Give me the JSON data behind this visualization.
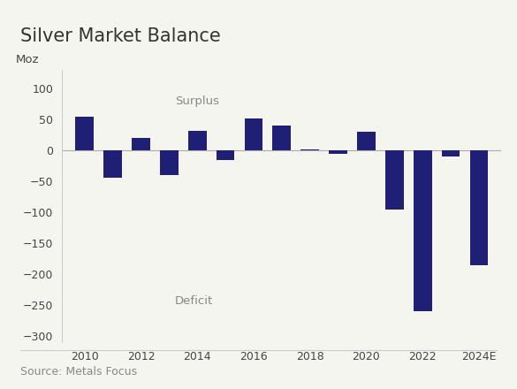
{
  "title": "Silver Market Balance",
  "ylabel": "Moz",
  "source": "Source: Metals Focus",
  "bar_color": "#1f2075",
  "background_color": "#f5f5f0",
  "years": [
    2010,
    2011,
    2012,
    2013,
    2014,
    2015,
    2016,
    2017,
    2018,
    2019,
    2020,
    2021,
    2022,
    2023,
    2024
  ],
  "values": [
    55,
    -44,
    20,
    -40,
    32,
    -15,
    52,
    40,
    2,
    -5,
    30,
    -95,
    -260,
    -10,
    -185
  ],
  "xtick_labels": [
    "2010",
    "2012",
    "2014",
    "2016",
    "2018",
    "2020",
    "2022",
    "2024E"
  ],
  "xtick_positions": [
    2010,
    2012,
    2014,
    2016,
    2018,
    2020,
    2022,
    2024
  ],
  "ylim": [
    -310,
    130
  ],
  "yticks": [
    -300,
    -250,
    -200,
    -150,
    -100,
    -50,
    0,
    50,
    100
  ],
  "surplus_label": "Surplus",
  "surplus_x": 2013.2,
  "surplus_y": 75,
  "deficit_label": "Deficit",
  "deficit_x": 2013.2,
  "deficit_y": -248,
  "title_fontsize": 15,
  "label_fontsize": 9.5,
  "tick_fontsize": 9,
  "source_fontsize": 9,
  "bar_width": 0.65
}
